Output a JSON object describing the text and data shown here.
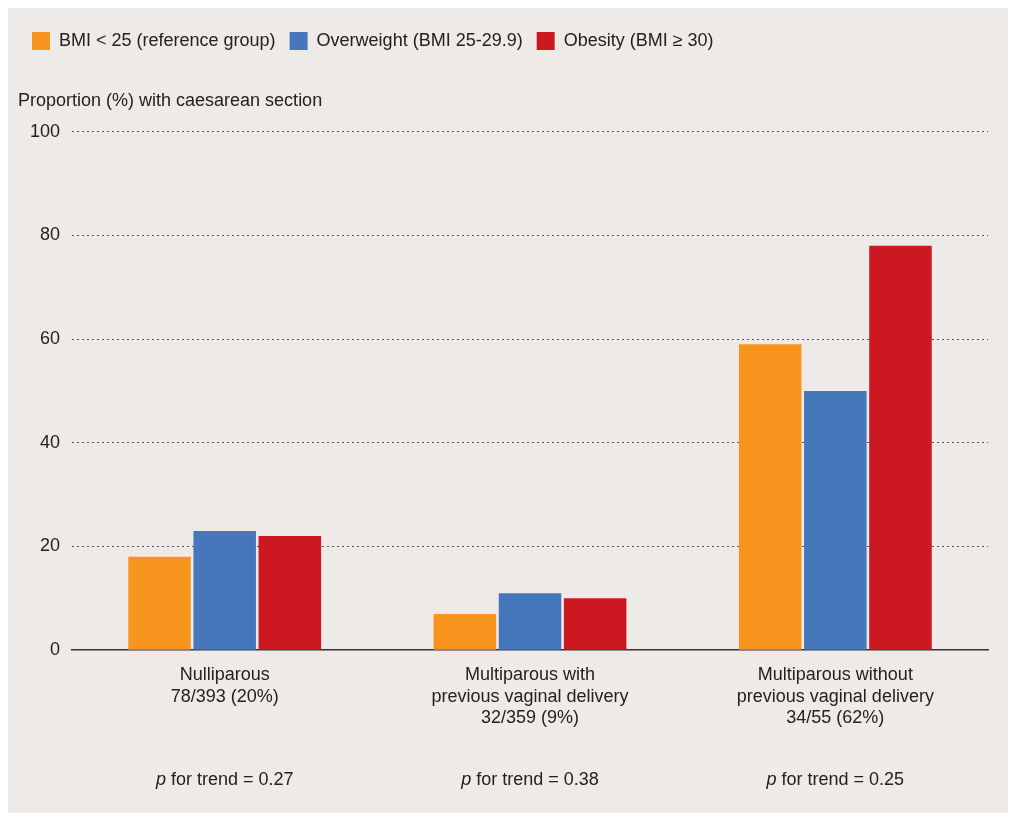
{
  "chart_data": {
    "type": "bar",
    "ylabel": "Proportion (%) with caesarean section",
    "categories": [
      "Nulliparous\n78/393 (20%)",
      "Multiparous with\nprevious vaginal delivery\n32/359 (9%)",
      "Multiparous without\nprevious vaginal delivery\n34/55 (62%)"
    ],
    "series": [
      {
        "name": "BMI < 25 (reference group)",
        "color": "#f7941d",
        "values": [
          18,
          7,
          59
        ]
      },
      {
        "name": "Overweight (BMI 25-29.9)",
        "color": "#4677ba",
        "values": [
          23,
          11,
          50
        ]
      },
      {
        "name": "Obesity (BMI ≥ 30)",
        "color": "#cc1820",
        "values": [
          22,
          10,
          78
        ]
      }
    ],
    "ylim": [
      0,
      100
    ],
    "yticks": [
      0,
      20,
      40,
      60,
      80,
      100
    ],
    "grid": "y",
    "legend": "top left",
    "annotations": [
      "p for trend = 0.27",
      "p for trend = 0.38",
      "p for trend = 0.25"
    ]
  }
}
